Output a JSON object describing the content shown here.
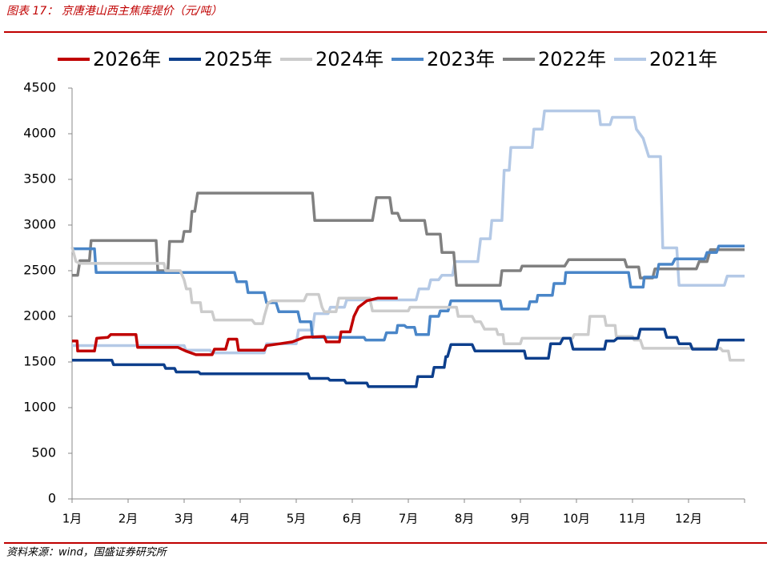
{
  "chart_data": {
    "type": "line",
    "title": "图表 17： 京唐港山西主焦库提价（元/吨）",
    "source": "资料来源：wind，国盛证券研究所",
    "xlim": [
      0,
      12
    ],
    "xticks": [
      {
        "value": 0,
        "label": "1月"
      },
      {
        "value": 1,
        "label": "2月"
      },
      {
        "value": 2,
        "label": "3月"
      },
      {
        "value": 3,
        "label": "4月"
      },
      {
        "value": 4,
        "label": "5月"
      },
      {
        "value": 5,
        "label": "6月"
      },
      {
        "value": 6,
        "label": "7月"
      },
      {
        "value": 7,
        "label": "8月"
      },
      {
        "value": 8,
        "label": "9月"
      },
      {
        "value": 9,
        "label": "10月"
      },
      {
        "value": 10,
        "label": "11月"
      },
      {
        "value": 11,
        "label": "12月"
      }
    ],
    "ylim": [
      0,
      4500
    ],
    "yticks": [
      0,
      500,
      1000,
      1500,
      2000,
      2500,
      3000,
      3500,
      4000,
      4500
    ],
    "grid": false,
    "legend": "top",
    "series": [
      {
        "name": "2026年",
        "color": "#c00000",
        "x": [
          0,
          0.09,
          0.1,
          0.4,
          0.44,
          0.64,
          0.69,
          1.14,
          1.17,
          1.89,
          2.03,
          2.21,
          2.5,
          2.54,
          2.74,
          2.79,
          2.94,
          2.97,
          3.43,
          3.47,
          3.71,
          3.93,
          4.14,
          4.5,
          4.54,
          4.77,
          4.8,
          4.96,
          5.03,
          5.11,
          5.26,
          5.46,
          5.81
        ],
        "values": [
          1730,
          1730,
          1620,
          1620,
          1760,
          1770,
          1800,
          1800,
          1660,
          1660,
          1620,
          1580,
          1580,
          1640,
          1640,
          1750,
          1750,
          1630,
          1630,
          1680,
          1700,
          1720,
          1770,
          1780,
          1720,
          1720,
          1830,
          1830,
          2000,
          2100,
          2170,
          2200,
          2200
        ]
      },
      {
        "name": "2025年",
        "color": "#0d3f8c",
        "x": [
          0,
          0.71,
          0.74,
          1.64,
          1.67,
          1.83,
          1.86,
          2.26,
          2.29,
          4.21,
          4.24,
          4.57,
          4.6,
          4.86,
          4.89,
          5.26,
          5.29,
          6.14,
          6.17,
          6.43,
          6.46,
          6.64,
          6.67,
          6.7,
          6.76,
          7.14,
          7.19,
          8.07,
          8.1,
          8.5,
          8.54,
          8.71,
          8.76,
          8.89,
          8.94,
          9.5,
          9.53,
          9.67,
          9.73,
          10.1,
          10.14,
          10.57,
          10.61,
          10.79,
          10.83,
          11.03,
          11.07,
          11.5,
          11.54,
          12
        ],
        "values": [
          1520,
          1520,
          1470,
          1470,
          1430,
          1430,
          1390,
          1390,
          1370,
          1370,
          1320,
          1320,
          1300,
          1300,
          1270,
          1270,
          1230,
          1230,
          1340,
          1340,
          1440,
          1440,
          1560,
          1560,
          1690,
          1690,
          1620,
          1620,
          1540,
          1540,
          1700,
          1700,
          1760,
          1760,
          1640,
          1640,
          1730,
          1730,
          1760,
          1760,
          1860,
          1860,
          1770,
          1770,
          1700,
          1700,
          1640,
          1640,
          1740,
          1740
        ]
      },
      {
        "name": "2024年",
        "color": "#cccccc",
        "x": [
          0,
          0.07,
          0.14,
          1.64,
          1.67,
          1.93,
          2.0,
          2.04,
          2.11,
          2.14,
          2.29,
          2.31,
          2.5,
          2.54,
          3.21,
          3.26,
          3.4,
          3.43,
          3.5,
          3.57,
          4.14,
          4.19,
          4.4,
          4.46,
          4.5,
          4.71,
          4.76,
          5.31,
          5.36,
          6.0,
          6.03,
          6.86,
          6.89,
          7.14,
          7.19,
          7.29,
          7.36,
          7.57,
          7.6,
          7.69,
          7.71,
          8.0,
          8.03,
          8.93,
          8.96,
          9.21,
          9.24,
          9.5,
          9.53,
          9.69,
          9.71,
          10.0,
          10.03,
          10.14,
          10.19,
          11.57,
          11.61,
          11.71,
          11.74,
          12
        ],
        "values": [
          2760,
          2600,
          2580,
          2580,
          2500,
          2500,
          2400,
          2300,
          2300,
          2150,
          2150,
          2050,
          2050,
          1960,
          1960,
          1920,
          1920,
          2000,
          2150,
          2170,
          2170,
          2240,
          2240,
          2100,
          2050,
          2050,
          2200,
          2200,
          2060,
          2060,
          2100,
          2100,
          2000,
          2000,
          1940,
          1940,
          1860,
          1860,
          1800,
          1800,
          1700,
          1700,
          1760,
          1760,
          1800,
          1800,
          2000,
          2000,
          1900,
          1900,
          1780,
          1780,
          1740,
          1740,
          1650,
          1650,
          1620,
          1620,
          1520,
          1520
        ]
      },
      {
        "name": "2023年",
        "color": "#4a86c8",
        "x": [
          0,
          0.4,
          0.43,
          2.9,
          2.94,
          3.11,
          3.14,
          3.43,
          3.47,
          3.64,
          3.69,
          4.03,
          4.07,
          4.26,
          4.29,
          5.21,
          5.24,
          5.57,
          5.61,
          5.79,
          5.81,
          5.93,
          5.97,
          6.11,
          6.14,
          6.36,
          6.39,
          6.54,
          6.57,
          6.71,
          6.76,
          7.64,
          7.67,
          8.14,
          8.17,
          8.29,
          8.31,
          8.57,
          8.6,
          8.79,
          8.81,
          9.93,
          9.97,
          10.19,
          10.21,
          10.43,
          10.47,
          10.71,
          10.76,
          11.29,
          11.33,
          11.5,
          11.54,
          12
        ],
        "values": [
          2740,
          2740,
          2480,
          2480,
          2380,
          2380,
          2260,
          2260,
          2150,
          2150,
          2050,
          2050,
          1940,
          1940,
          1770,
          1770,
          1740,
          1740,
          1820,
          1820,
          1900,
          1900,
          1880,
          1880,
          1800,
          1800,
          2000,
          2000,
          2060,
          2060,
          2170,
          2170,
          2080,
          2080,
          2160,
          2160,
          2230,
          2230,
          2360,
          2360,
          2480,
          2480,
          2320,
          2320,
          2430,
          2430,
          2570,
          2570,
          2630,
          2630,
          2700,
          2700,
          2770,
          2770
        ]
      },
      {
        "name": "2022年",
        "color": "#808080",
        "x": [
          0,
          0.1,
          0.14,
          0.31,
          0.34,
          1.5,
          1.53,
          1.71,
          1.74,
          1.97,
          2.0,
          2.11,
          2.14,
          2.19,
          2.24,
          4.29,
          4.33,
          5.36,
          5.43,
          5.67,
          5.71,
          5.81,
          5.86,
          6.29,
          6.33,
          6.57,
          6.6,
          6.81,
          6.86,
          7.64,
          7.67,
          8.0,
          8.03,
          8.79,
          8.86,
          9.86,
          9.9,
          10.11,
          10.14,
          10.36,
          10.4,
          11.14,
          11.19,
          11.33,
          11.39,
          12
        ],
        "values": [
          2450,
          2450,
          2610,
          2610,
          2830,
          2830,
          2500,
          2500,
          2820,
          2820,
          2930,
          2930,
          3150,
          3150,
          3350,
          3350,
          3050,
          3050,
          3300,
          3300,
          3130,
          3130,
          3050,
          3050,
          2900,
          2900,
          2700,
          2700,
          2340,
          2340,
          2500,
          2500,
          2550,
          2550,
          2620,
          2620,
          2540,
          2540,
          2420,
          2420,
          2520,
          2520,
          2600,
          2600,
          2730,
          2730
        ]
      },
      {
        "name": "2021年",
        "color": "#b4c9e6",
        "x": [
          0,
          2.0,
          2.03,
          2.46,
          2.5,
          3.43,
          3.47,
          4.0,
          4.04,
          4.29,
          4.33,
          4.57,
          4.61,
          4.86,
          4.9,
          6.14,
          6.19,
          6.36,
          6.4,
          6.54,
          6.6,
          6.79,
          6.83,
          7.24,
          7.29,
          7.46,
          7.49,
          7.67,
          7.71,
          7.8,
          7.83,
          8.21,
          8.24,
          8.39,
          8.43,
          9.4,
          9.43,
          9.6,
          9.64,
          10.03,
          10.07,
          10.19,
          10.29,
          10.5,
          10.54,
          10.79,
          10.83,
          11.64,
          11.69,
          12
        ],
        "values": [
          1680,
          1680,
          1630,
          1630,
          1600,
          1600,
          1700,
          1700,
          1850,
          1850,
          2030,
          2030,
          2100,
          2100,
          2180,
          2180,
          2300,
          2300,
          2400,
          2400,
          2450,
          2450,
          2600,
          2600,
          2850,
          2850,
          3050,
          3050,
          3600,
          3600,
          3850,
          3850,
          4050,
          4050,
          4250,
          4250,
          4100,
          4100,
          4180,
          4180,
          4050,
          3950,
          3750,
          3750,
          2750,
          2750,
          2340,
          2340,
          2440,
          2440
        ]
      }
    ]
  }
}
